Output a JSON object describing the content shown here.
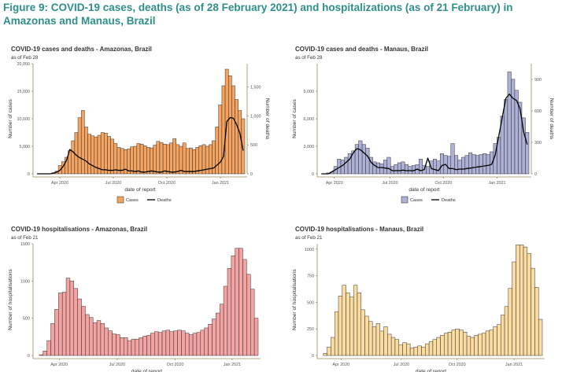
{
  "figure_title": "Figure 9: COVID-19 cases, deaths (as of 28 February 2021) and hospitalizations (as of 21 February) in Amazonas and Manaus, Brazil",
  "chart_data": [
    {
      "type": "bar",
      "title": "COVID-19 cases and deaths - Amazonas, Brazil",
      "subtitle": "as of Feb 28",
      "xlabel": "date of report",
      "ylabel": "Number of cases",
      "y2label": "Number of deaths",
      "xticks": [
        "Apr 2020",
        "Jul 2020",
        "Oct 2020",
        "Jan 2021"
      ],
      "ylim": [
        0,
        20000
      ],
      "yticks": [
        "0",
        "5,000",
        "10,000",
        "15,000",
        "20,000"
      ],
      "y2lim": [
        0,
        1900
      ],
      "y2ticks": [
        0,
        500,
        1000,
        1500
      ],
      "y2ticklabels": [
        "0",
        "500",
        "1,000",
        "1,500"
      ],
      "bar_color": "#f4a460",
      "values": [
        0,
        0,
        0,
        0,
        0,
        200,
        500,
        1500,
        2200,
        3000,
        4200,
        6000,
        7500,
        10200,
        11500,
        8500,
        7200,
        6900,
        6700,
        7000,
        7500,
        7400,
        6800,
        6300,
        5500,
        4800,
        4600,
        4400,
        4500,
        4900,
        5000,
        5500,
        5400,
        5100,
        4800,
        4700,
        5200,
        5900,
        5700,
        5400,
        5300,
        5600,
        6400,
        5300,
        5000,
        5600,
        4600,
        4700,
        4400,
        4800,
        5100,
        5300,
        5000,
        5300,
        6000,
        8500,
        12500,
        16000,
        19000,
        17800,
        16000,
        13500,
        11500,
        10000
      ],
      "legend": [
        "Cases",
        "Deaths"
      ],
      "line": {
        "name": "Deaths",
        "values": [
          0,
          0,
          0,
          0,
          0,
          10,
          30,
          60,
          130,
          230,
          420,
          380,
          320,
          280,
          250,
          220,
          170,
          140,
          110,
          90,
          70,
          70,
          60,
          60,
          70,
          60,
          60,
          80,
          50,
          50,
          40,
          50,
          30,
          30,
          40,
          50,
          40,
          30,
          30,
          50,
          40,
          30,
          30,
          40,
          60,
          40,
          40,
          40,
          40,
          50,
          60,
          70,
          80,
          90,
          100,
          150,
          200,
          300,
          900,
          970,
          960,
          850,
          700,
          400
        ]
      }
    },
    {
      "type": "bar",
      "title": "COVID-19 cases and deaths - Manaus, Brazil",
      "subtitle": "as of Feb 28",
      "xlabel": "date of report",
      "ylabel": "Number of cases",
      "y2label": "Number of deaths",
      "xticks": [
        "Apr 2020",
        "Jul 2020",
        "Oct 2020",
        "Jan 2021"
      ],
      "ylim": [
        0,
        12000
      ],
      "yticks": [
        "0",
        "3,000",
        "6,000",
        "9,000"
      ],
      "y2lim": [
        0,
        1050
      ],
      "y2ticks": [
        0,
        300,
        600,
        900
      ],
      "y2ticklabels": [
        "0",
        "300",
        "600",
        "900"
      ],
      "bar_color": "#aeb1d6",
      "values": [
        0,
        0,
        100,
        200,
        800,
        1600,
        1500,
        1800,
        2200,
        2500,
        3200,
        3600,
        3200,
        2800,
        1800,
        1300,
        1200,
        1100,
        1500,
        1800,
        800,
        1000,
        1200,
        1300,
        1000,
        800,
        900,
        1000,
        1600,
        900,
        800,
        1400,
        1600,
        1400,
        2200,
        2000,
        1900,
        3300,
        2000,
        1500,
        1800,
        2000,
        2300,
        2100,
        2000,
        2100,
        2200,
        2100,
        2400,
        3300,
        4000,
        6300,
        8100,
        11100,
        10300,
        9100,
        7800,
        6100,
        4500
      ],
      "legend": [
        "Cases",
        "Deaths"
      ],
      "line": {
        "name": "Deaths",
        "values": [
          0,
          0,
          0,
          20,
          40,
          60,
          80,
          110,
          140,
          200,
          240,
          230,
          200,
          170,
          110,
          80,
          60,
          60,
          55,
          50,
          30,
          30,
          30,
          35,
          30,
          30,
          30,
          45,
          30,
          40,
          150,
          50,
          40,
          30,
          80,
          90,
          50,
          50,
          40,
          45,
          45,
          50,
          55,
          60,
          65,
          70,
          75,
          80,
          90,
          180,
          360,
          540,
          720,
          760,
          720,
          700,
          620,
          400,
          280
        ]
      }
    },
    {
      "type": "bar",
      "title": "COVID-19 hospitalisations - Amazonas, Brazil",
      "subtitle": "as of Feb 21",
      "xlabel": "date of report",
      "ylabel": "Number of hospitalisations",
      "xticks": [
        "Apr 2020",
        "Jul 2020",
        "Oct 2020",
        "Jan 2021"
      ],
      "ylim": [
        0,
        1500
      ],
      "yticks": [
        "0",
        "500",
        "1000",
        "1500"
      ],
      "bar_color": "#f4a3a3",
      "values": [
        0,
        10,
        60,
        200,
        430,
        620,
        840,
        850,
        1040,
        1000,
        900,
        760,
        660,
        550,
        510,
        440,
        470,
        430,
        370,
        330,
        290,
        280,
        240,
        240,
        200,
        220,
        220,
        240,
        260,
        270,
        300,
        320,
        310,
        330,
        340,
        320,
        330,
        340,
        330,
        300,
        280,
        300,
        310,
        340,
        370,
        420,
        490,
        570,
        690,
        930,
        1170,
        1340,
        1440,
        1440,
        1290,
        1090,
        890,
        500
      ]
    },
    {
      "type": "bar",
      "title": "COVID-19 hospitalisations - Manaus, Brazil",
      "subtitle": "as of Feb 21",
      "xlabel": "date of report",
      "ylabel": "Number of hospitalisations",
      "xticks": [
        "Apr 2020",
        "Jul 2020",
        "Oct 2020",
        "Jan 2021"
      ],
      "ylim": [
        0,
        1050
      ],
      "yticks": [
        "0",
        "250",
        "500",
        "750",
        "1000"
      ],
      "bar_color": "#fadba0",
      "values": [
        0,
        20,
        80,
        170,
        410,
        560,
        660,
        590,
        550,
        660,
        590,
        430,
        370,
        320,
        270,
        300,
        230,
        270,
        200,
        170,
        150,
        100,
        120,
        110,
        70,
        80,
        90,
        80,
        110,
        130,
        150,
        170,
        190,
        210,
        220,
        240,
        250,
        240,
        220,
        180,
        170,
        190,
        200,
        210,
        230,
        240,
        270,
        290,
        380,
        460,
        630,
        880,
        1040,
        1040,
        1020,
        960,
        820,
        640,
        340
      ]
    }
  ]
}
